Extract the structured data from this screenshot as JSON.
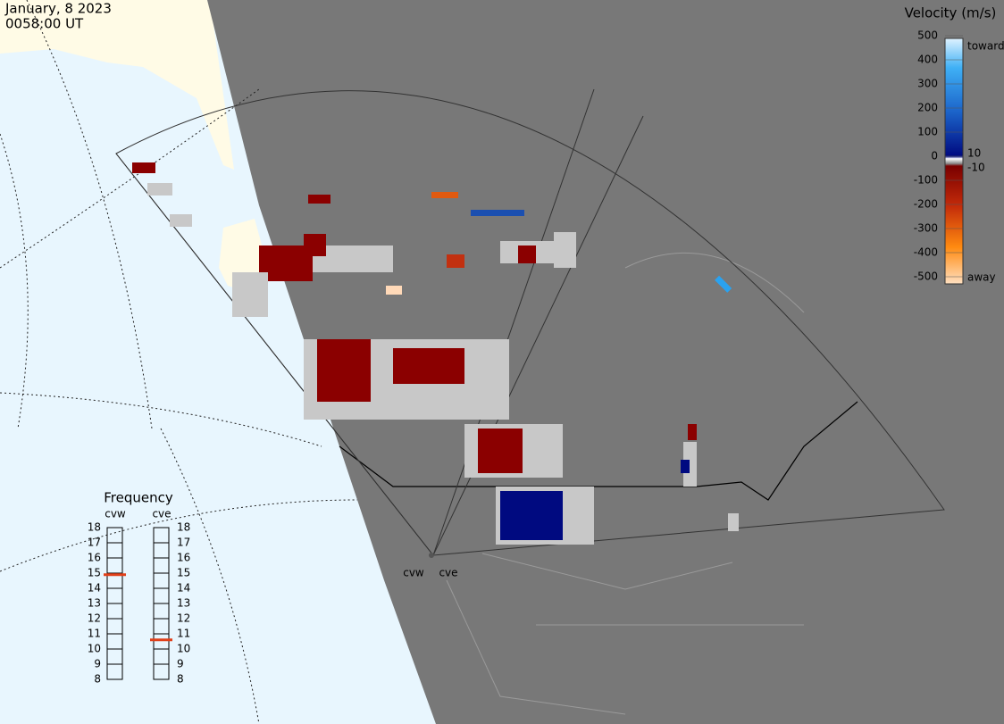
{
  "header": {
    "date": "January, 8 2023",
    "time": "0058:00 UT"
  },
  "colorbar": {
    "title": "Velocity (m/s)",
    "ticks": [
      500,
      400,
      300,
      200,
      100,
      0,
      -100,
      -200,
      -300,
      -400,
      -500
    ],
    "toward": "toward",
    "away": "away",
    "upper_small": "10",
    "lower_small": "-10"
  },
  "frequency": {
    "title": "Frequency",
    "scale": [
      8,
      9,
      10,
      11,
      12,
      13,
      14,
      15,
      16,
      17,
      18
    ],
    "radars": [
      {
        "name": "cvw",
        "value": 14.9
      },
      {
        "name": "cve",
        "value": 10.6
      }
    ]
  },
  "map": {
    "radar_labels": [
      "cvw",
      "cve"
    ]
  }
}
